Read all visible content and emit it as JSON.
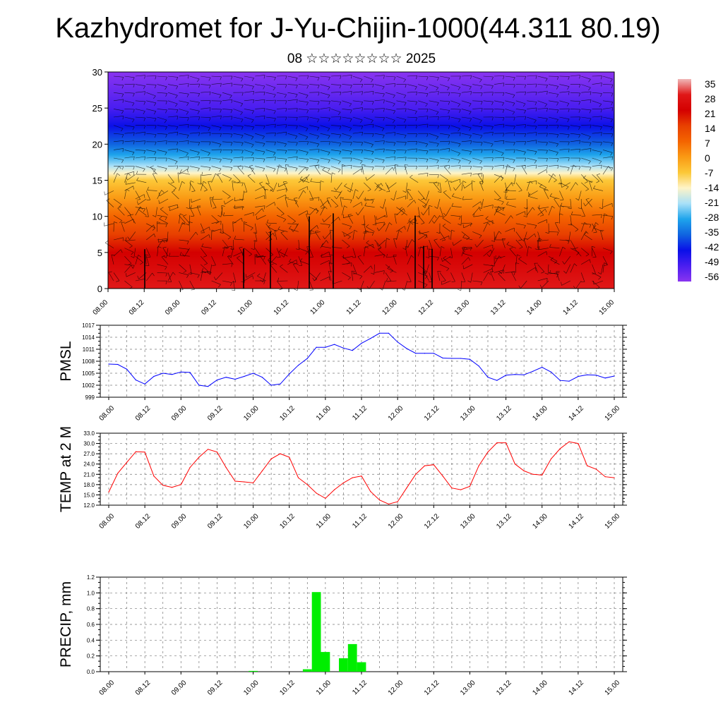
{
  "title": "Kazhydromet for J-Yu-Chijin-1000(44.311 80.19)",
  "subtitle": "08 ☆☆☆☆☆☆☆☆ 2025",
  "time_ticks": [
    "08.00",
    "08.12",
    "09.00",
    "09.12",
    "10.00",
    "10.12",
    "11.00",
    "11.12",
    "12.00",
    "12.12",
    "13.00",
    "13.12",
    "14.00",
    "14.12",
    "15.00"
  ],
  "colorbar": {
    "labels": [
      "35",
      "28",
      "21",
      "14",
      "7",
      "0",
      "-7",
      "-14",
      "-21",
      "-28",
      "-35",
      "-42",
      "-49",
      "-56"
    ],
    "colors": [
      "#f0b8b8",
      "#e01818",
      "#d40000",
      "#e84000",
      "#f46400",
      "#fa9a14",
      "#fcc838",
      "#fef4c8",
      "#a8e0f8",
      "#1ea4ec",
      "#1064e0",
      "#0a10e8",
      "#4a1ef0",
      "#8a34f0"
    ]
  },
  "chart_data": [
    {
      "type": "heatmap",
      "title": "",
      "description_ref": "Vertical cross-section of temperature with wind barbs",
      "ylim": [
        0,
        30
      ],
      "yticks": [
        "0",
        "5",
        "10",
        "15",
        "20",
        "25",
        "30"
      ],
      "x_ticks_ref": "time_ticks",
      "value_range": [
        -56,
        35
      ],
      "temperature_profile": [
        {
          "height": 0,
          "value": 28
        },
        {
          "height": 5,
          "value": 21
        },
        {
          "height": 10,
          "value": 7
        },
        {
          "height": 15,
          "value": -7
        },
        {
          "height": 17,
          "value": -21
        },
        {
          "height": 20,
          "value": -35
        },
        {
          "height": 25,
          "value": -49
        },
        {
          "height": 30,
          "value": -56
        }
      ]
    },
    {
      "type": "line",
      "ylabel": "PMSL",
      "ylim": [
        999,
        1017
      ],
      "yticks": [
        "999",
        "1002",
        "1005",
        "1008",
        "1011",
        "1014",
        "1017"
      ],
      "color": "#0000ff",
      "x": [
        0,
        3,
        6,
        9,
        12,
        15,
        18,
        21,
        24,
        27,
        30,
        33,
        36,
        39,
        42,
        45,
        48,
        51,
        54,
        57,
        60,
        63,
        66,
        69,
        72,
        75,
        78,
        81,
        84,
        87,
        90,
        93,
        96,
        99,
        102,
        105,
        108,
        111,
        114,
        117,
        120,
        123,
        126,
        129,
        132,
        135,
        138,
        141,
        144,
        147,
        150,
        153,
        156,
        159,
        162,
        165,
        168
      ],
      "values": [
        1007.3,
        1007.2,
        1006.0,
        1003.3,
        1002.3,
        1004.2,
        1005.0,
        1004.7,
        1005.3,
        1005.2,
        1002.0,
        1001.7,
        1003.3,
        1004.0,
        1003.5,
        1004.2,
        1005.0,
        1004.0,
        1002.0,
        1002.3,
        1004.8,
        1007.0,
        1008.7,
        1011.5,
        1011.5,
        1012.2,
        1011.3,
        1010.7,
        1012.5,
        1013.7,
        1015.0,
        1015.0,
        1012.8,
        1011.2,
        1010.0,
        1010.0,
        1010.0,
        1008.8,
        1008.7,
        1008.7,
        1008.5,
        1006.8,
        1004.0,
        1003.2,
        1004.5,
        1004.7,
        1004.6,
        1005.5,
        1006.5,
        1005.3,
        1003.2,
        1003.0,
        1004.2,
        1004.6,
        1004.5,
        1003.8,
        1004.3
      ],
      "x_ticks_ref": "time_ticks"
    },
    {
      "type": "line",
      "ylabel": "TEMP at 2 M",
      "ylim": [
        12.0,
        33.0
      ],
      "yticks": [
        "12.0",
        "15.0",
        "18.0",
        "21.0",
        "24.0",
        "27.0",
        "30.0",
        "33.0"
      ],
      "color": "#ff0000",
      "x": [
        0,
        3,
        6,
        9,
        12,
        15,
        18,
        21,
        24,
        27,
        30,
        33,
        36,
        39,
        42,
        45,
        48,
        51,
        54,
        57,
        60,
        63,
        66,
        69,
        72,
        75,
        78,
        81,
        84,
        87,
        90,
        93,
        96,
        99,
        102,
        105,
        108,
        111,
        114,
        117,
        120,
        123,
        126,
        129,
        132,
        135,
        138,
        141,
        144,
        147,
        150,
        153,
        156,
        159,
        162,
        165,
        168
      ],
      "values": [
        15.8,
        21.3,
        24.5,
        27.6,
        27.5,
        20.5,
        17.8,
        17.2,
        18.0,
        23.0,
        26.0,
        28.3,
        27.5,
        23.0,
        19.0,
        18.8,
        18.5,
        22.0,
        25.5,
        27.0,
        26.0,
        20.0,
        18.0,
        15.5,
        14.0,
        16.5,
        18.5,
        20.0,
        20.5,
        16.0,
        13.5,
        12.3,
        13.0,
        17.0,
        21.0,
        23.5,
        23.8,
        20.5,
        17.0,
        16.5,
        17.5,
        23.5,
        27.5,
        30.2,
        30.2,
        24.0,
        22.0,
        21.0,
        20.8,
        25.5,
        28.5,
        30.5,
        30.0,
        23.5,
        22.5,
        20.3,
        20.0
      ],
      "x_ticks_ref": "time_ticks"
    },
    {
      "type": "bar",
      "ylabel": "PRECIP, mm",
      "ylim": [
        0.0,
        1.2
      ],
      "yticks": [
        "0.0",
        "0.2",
        "0.4",
        "0.6",
        "0.8",
        "1.0",
        "1.2"
      ],
      "color": "#00ee00",
      "bars": [
        {
          "x": 48,
          "value": 0.01
        },
        {
          "x": 66,
          "value": 0.03
        },
        {
          "x": 69,
          "value": 1.01
        },
        {
          "x": 72,
          "value": 0.25
        },
        {
          "x": 78,
          "value": 0.17
        },
        {
          "x": 81,
          "value": 0.35
        },
        {
          "x": 84,
          "value": 0.12
        }
      ],
      "x_ticks_ref": "time_ticks"
    }
  ]
}
